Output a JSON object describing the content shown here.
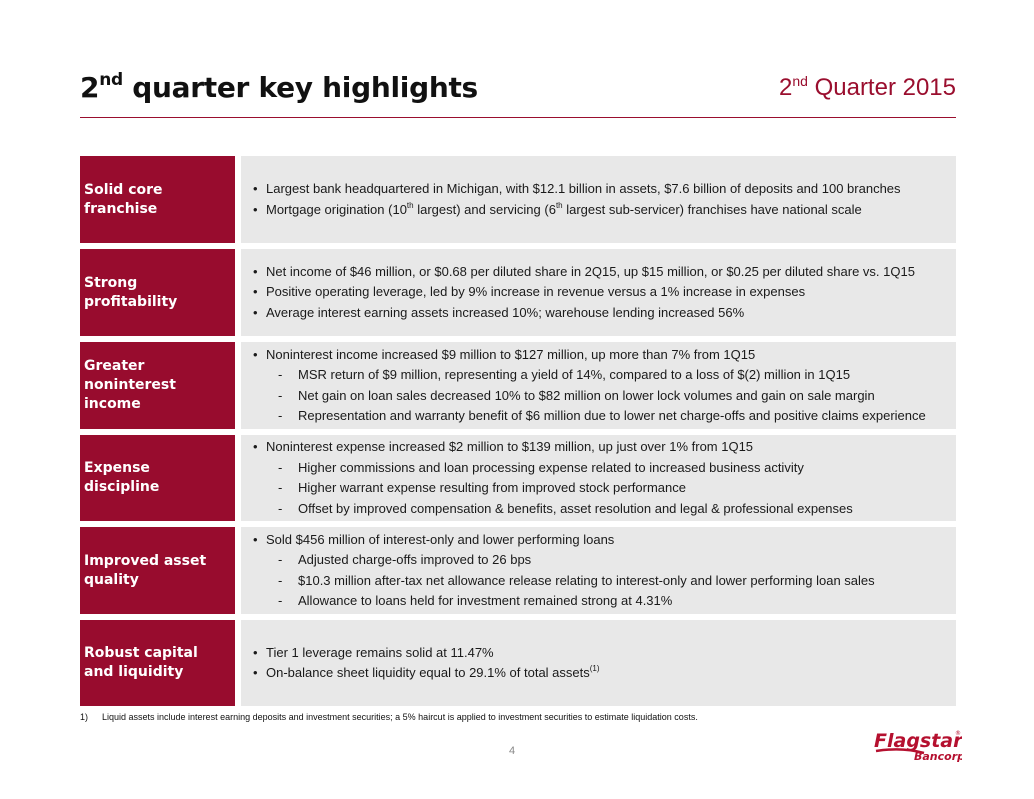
{
  "header": {
    "title_ord": "2",
    "title_sup": "nd",
    "title_rest": " quarter key highlights",
    "period_ord": "2",
    "period_sup": "nd",
    "period_rest": " Quarter 2015"
  },
  "rows": [
    {
      "label": "Solid core franchise",
      "items": [
        {
          "type": "bullet",
          "parts": [
            "Largest bank headquartered in Michigan, with $12.1 billion in assets, $7.6 billion of deposits and 100 branches"
          ]
        },
        {
          "type": "bullet",
          "parts": [
            "Mortgage origination (10",
            "th",
            " largest) and servicing (6",
            "th",
            " largest sub-servicer) franchises have national scale"
          ]
        }
      ]
    },
    {
      "label": "Strong profitability",
      "items": [
        {
          "type": "bullet",
          "parts": [
            "Net income of $46 million, or $0.68 per diluted share in 2Q15, up $15 million, or $0.25 per diluted share vs. 1Q15"
          ]
        },
        {
          "type": "bullet",
          "parts": [
            "Positive operating leverage, led by 9% increase in revenue versus a 1% increase in expenses"
          ]
        },
        {
          "type": "bullet",
          "parts": [
            "Average interest earning assets increased 10%; warehouse lending increased 56%"
          ]
        }
      ]
    },
    {
      "label": "Greater noninterest income",
      "items": [
        {
          "type": "bullet",
          "parts": [
            "Noninterest income increased $9 million to $127 million, up more than 7% from 1Q15"
          ]
        },
        {
          "type": "sub",
          "parts": [
            "MSR return of $9 million, representing a yield of 14%, compared to a loss of $(2) million in 1Q15"
          ]
        },
        {
          "type": "sub",
          "parts": [
            "Net gain on loan sales decreased 10% to $82 million on lower lock volumes and gain on sale margin"
          ]
        },
        {
          "type": "sub",
          "parts": [
            "Representation and warranty benefit of $6 million due to lower net charge-offs and positive claims experience"
          ]
        }
      ]
    },
    {
      "label": "Expense discipline",
      "items": [
        {
          "type": "bullet",
          "parts": [
            "Noninterest expense increased $2 million to $139 million, up just over 1% from 1Q15"
          ]
        },
        {
          "type": "sub",
          "parts": [
            "Higher commissions and loan processing expense related to increased business activity"
          ]
        },
        {
          "type": "sub",
          "parts": [
            "Higher warrant expense resulting from improved stock performance"
          ]
        },
        {
          "type": "sub",
          "parts": [
            "Offset by improved compensation & benefits, asset resolution and legal & professional expenses"
          ]
        }
      ]
    },
    {
      "label": "Improved asset quality",
      "items": [
        {
          "type": "bullet",
          "parts": [
            "Sold $456 million of interest-only and lower performing loans"
          ]
        },
        {
          "type": "sub",
          "parts": [
            "Adjusted charge-offs improved to 26 bps"
          ]
        },
        {
          "type": "sub",
          "parts": [
            "$10.3 million after-tax net allowance release relating to interest-only and lower performing loan sales"
          ]
        },
        {
          "type": "sub",
          "parts": [
            "Allowance to loans held for investment remained strong at 4.31%"
          ]
        }
      ]
    },
    {
      "label": "Robust capital and liquidity",
      "items": [
        {
          "type": "bullet",
          "parts": [
            "Tier 1 leverage remains solid at 11.47%"
          ]
        },
        {
          "type": "bullet",
          "parts": [
            "On-balance sheet liquidity equal to 29.1% of total assets",
            "(1)"
          ]
        }
      ]
    }
  ],
  "markers": {
    "bullet": "•",
    "sub": "-"
  },
  "footnote": {
    "number": "1)",
    "text": "Liquid assets include interest earning deposits and investment securities; a 5% haircut is applied to investment securities to estimate liquidation costs."
  },
  "page_number": "4",
  "logo": {
    "brand": "Flagstar",
    "sub": "Bancorp",
    "reg": "®",
    "color": "#b5102f"
  },
  "colors": {
    "accent": "#980c2e",
    "panel": "#e8e8e8"
  }
}
